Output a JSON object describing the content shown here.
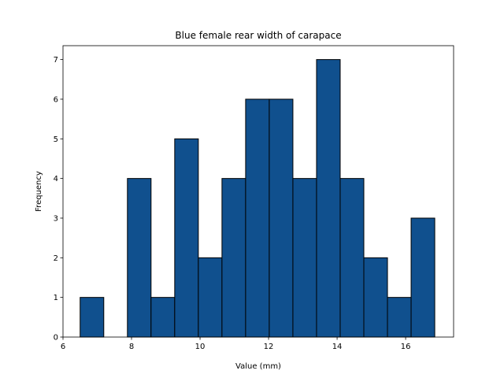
{
  "chart_data": {
    "type": "bar",
    "title": "Blue female rear width of carapace",
    "xlabel": "Value (mm)",
    "ylabel": "Frequency",
    "bin_edges": [
      6.5,
      7.19,
      7.88,
      8.57,
      9.26,
      9.95,
      10.64,
      11.33,
      12.02,
      12.71,
      13.4,
      14.09,
      14.78,
      15.47,
      16.16,
      16.85
    ],
    "values": [
      1,
      0,
      4,
      1,
      5,
      2,
      4,
      6,
      6,
      4,
      7,
      4,
      2,
      1,
      3
    ],
    "xlim": [
      6.0,
      17.4
    ],
    "ylim": [
      0,
      7.35
    ],
    "xticks": [
      6,
      8,
      10,
      12,
      14,
      16
    ],
    "yticks": [
      0,
      1,
      2,
      3,
      4,
      5,
      6,
      7
    ],
    "grid": false,
    "bar_color": "#10508e",
    "edge_color": "#000000"
  }
}
